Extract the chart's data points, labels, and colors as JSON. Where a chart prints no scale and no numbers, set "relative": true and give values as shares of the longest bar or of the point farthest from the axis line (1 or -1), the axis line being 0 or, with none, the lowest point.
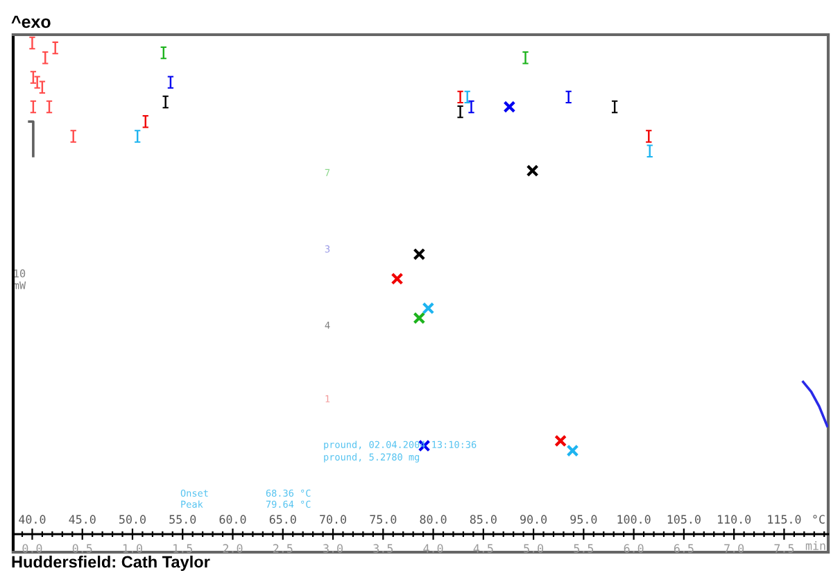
{
  "chart_data": {
    "type": "scatter",
    "title": "^exo",
    "xlabel": "°C",
    "x2label": "min",
    "ylabel": "10\nmW",
    "relative": true,
    "tick_labels": "x",
    "xlim": [
      38.1,
      119.4
    ],
    "xticks": [
      {
        "value": 40,
        "label": "40.0"
      },
      {
        "value": 45,
        "label": "45.0"
      },
      {
        "value": 50,
        "label": "50.0"
      },
      {
        "value": 55,
        "label": "55.0"
      },
      {
        "value": 60,
        "label": "60.0"
      },
      {
        "value": 65,
        "label": "65.0"
      },
      {
        "value": 70,
        "label": "70.0"
      },
      {
        "value": 75,
        "label": "75.0"
      },
      {
        "value": 80,
        "label": "80.0"
      },
      {
        "value": 85,
        "label": "85.0"
      },
      {
        "value": 90,
        "label": "90.0"
      },
      {
        "value": 95,
        "label": "95.0"
      },
      {
        "value": 100,
        "label": "100.0"
      },
      {
        "value": 105,
        "label": "105.0"
      },
      {
        "value": 110,
        "label": "110.0"
      },
      {
        "value": 115,
        "label": "115.0"
      }
    ],
    "x2lim": [
      -0.19,
      7.94
    ],
    "x2ticks": [
      {
        "value": 0,
        "label": "0.0"
      },
      {
        "value": 0.5,
        "label": "0.5"
      },
      {
        "value": 1,
        "label": "1.0"
      },
      {
        "value": 1.5,
        "label": "1.5"
      },
      {
        "value": 2,
        "label": "2.0"
      },
      {
        "value": 2.5,
        "label": "2.5"
      },
      {
        "value": 3,
        "label": "3.0"
      },
      {
        "value": 3.5,
        "label": "3.5"
      },
      {
        "value": 4,
        "label": "4.0"
      },
      {
        "value": 4.5,
        "label": "4.5"
      },
      {
        "value": 5,
        "label": "5.0"
      },
      {
        "value": 5.5,
        "label": "5.5"
      },
      {
        "value": 6,
        "label": "6.0"
      },
      {
        "value": 6.5,
        "label": "6.5"
      },
      {
        "value": 7,
        "label": "7.0"
      },
      {
        "value": 7.5,
        "label": "7.5"
      }
    ],
    "series": [
      {
        "color": "#ff4a4a",
        "x": [
          40.0,
          42.3,
          41.3,
          40.1,
          40.5,
          41.0,
          40.1,
          41.7,
          44.1
        ],
        "values": [
          1.0,
          0.99,
          0.97,
          0.93,
          0.92,
          0.91,
          0.87,
          0.87,
          0.81
        ]
      },
      {
        "type": "line",
        "color": "#606060",
        "line_style": "solid",
        "x": [
          39.7,
          40.1,
          40.1
        ],
        "values": [
          0.84,
          0.84,
          0.77
        ]
      },
      {
        "color": "#1db31d",
        "x": [
          53.1,
          89.2
        ],
        "values": [
          0.98,
          0.97
        ]
      },
      {
        "color": "#1db31d",
        "marker": "cross",
        "x": [
          78.6
        ],
        "values": [
          0.44
        ]
      },
      {
        "color": "#0000f0",
        "x": [
          53.8,
          83.8,
          93.5
        ],
        "values": [
          0.92,
          0.87,
          0.89
        ]
      },
      {
        "color": "#0000f0",
        "marker": "cross",
        "x": [
          87.6,
          79.1
        ],
        "values": [
          0.87,
          0.18
        ]
      },
      {
        "color": "#000000",
        "x": [
          53.3,
          82.7,
          98.1
        ],
        "values": [
          0.88,
          0.86,
          0.87
        ]
      },
      {
        "color": "#000000",
        "marker": "cross",
        "x": [
          89.9,
          78.6
        ],
        "values": [
          0.74,
          0.57
        ]
      },
      {
        "color": "#f00000",
        "x": [
          51.3,
          82.7,
          101.5
        ],
        "values": [
          0.84,
          0.89,
          0.81
        ]
      },
      {
        "color": "#f00000",
        "marker": "cross",
        "x": [
          76.4,
          92.7
        ],
        "values": [
          0.52,
          0.19
        ]
      },
      {
        "color": "#1eb4f0",
        "x": [
          50.5,
          83.4,
          101.6
        ],
        "values": [
          0.81,
          0.89,
          0.78
        ]
      },
      {
        "color": "#1eb4f0",
        "marker": "cross",
        "x": [
          79.5,
          93.9
        ],
        "values": [
          0.46,
          0.17
        ]
      },
      {
        "type": "line",
        "color": "#2a2ae8",
        "line_style": "solid",
        "x": [
          116.9,
          117.7,
          118.5,
          119.3
        ],
        "values": [
          0.31,
          0.29,
          0.26,
          0.22
        ]
      }
    ],
    "annotations": [
      "7",
      "3",
      "4",
      "1",
      "pround, 02.04.2004 13:10:36",
      "pround, 5.2780 mg",
      "Onset          68.36 °C",
      "Peak           79.64 °C",
      "Huddersfield: Cath Taylor"
    ]
  }
}
